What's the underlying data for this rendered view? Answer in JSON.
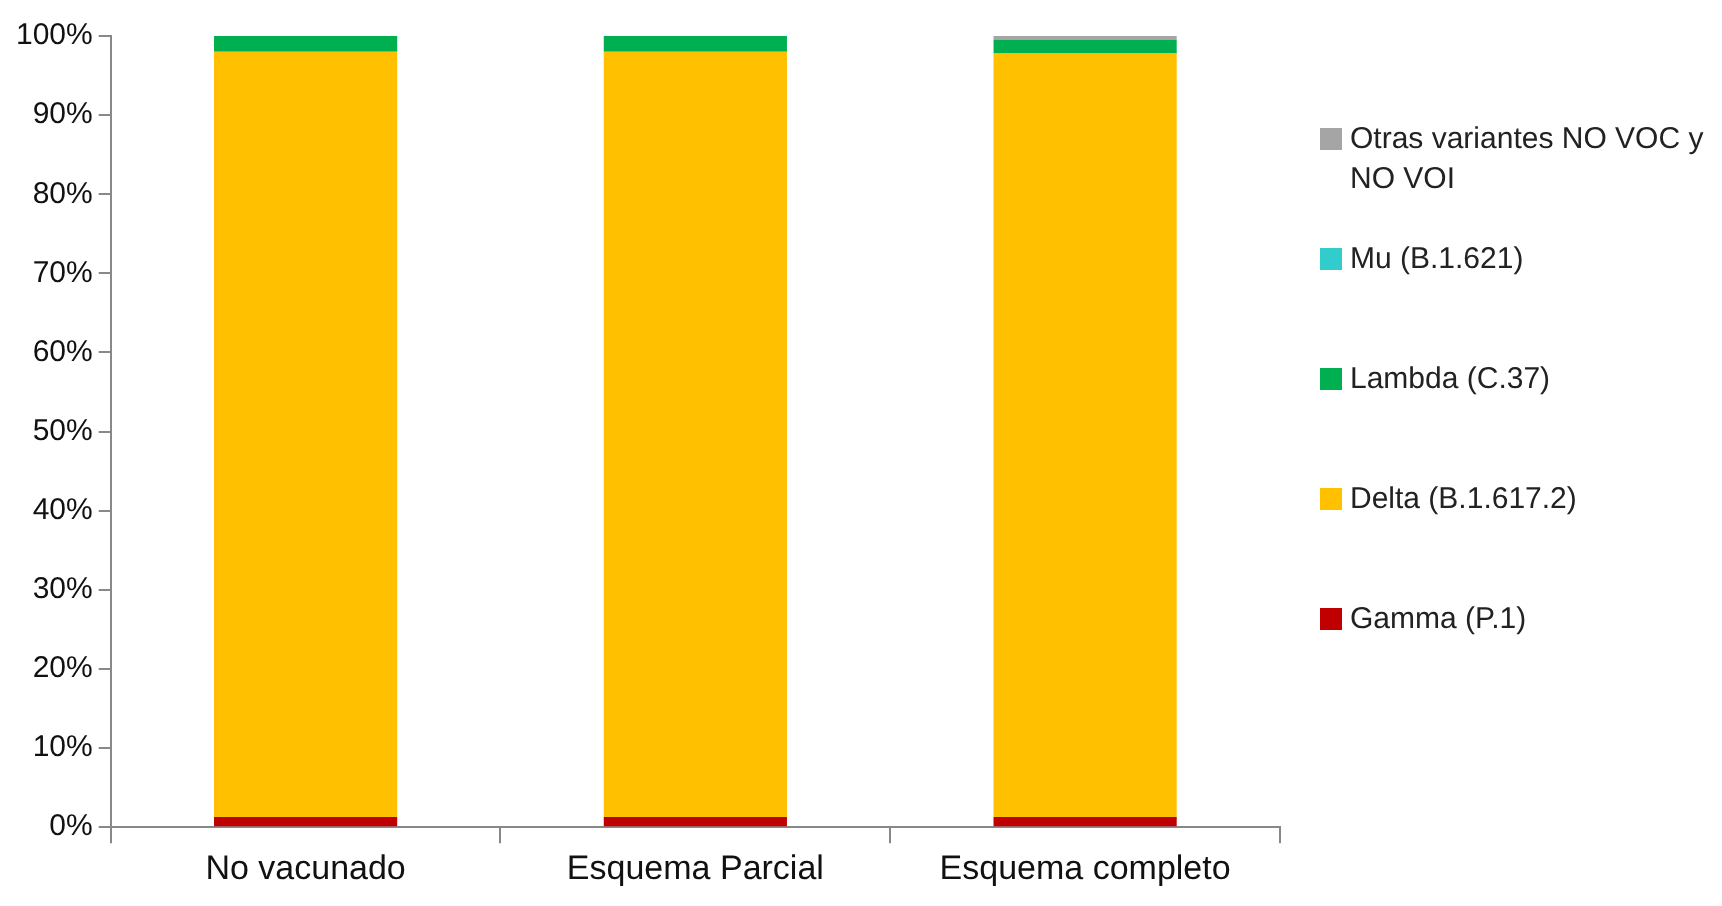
{
  "chart_data": {
    "type": "bar",
    "stacked": true,
    "grid": false,
    "legend": "right",
    "categories": [
      "No vacunado",
      "Esquema Parcial",
      "Esquema completo"
    ],
    "ylim": [
      0,
      100
    ],
    "yticks": [
      {
        "value": 0,
        "label": "0%"
      },
      {
        "value": 10,
        "label": "10%"
      },
      {
        "value": 20,
        "label": "20%"
      },
      {
        "value": 30,
        "label": "30%"
      },
      {
        "value": 40,
        "label": "40%"
      },
      {
        "value": 50,
        "label": "50%"
      },
      {
        "value": 60,
        "label": "60%"
      },
      {
        "value": 70,
        "label": "70%"
      },
      {
        "value": 80,
        "label": "80%"
      },
      {
        "value": 90,
        "label": "90%"
      },
      {
        "value": 100,
        "label": "100%"
      }
    ],
    "series": [
      {
        "name": "Gamma (P.1)",
        "color": "#c00000",
        "values": [
          1.3,
          1.3,
          1.3
        ]
      },
      {
        "name": "Delta (B.1.617.2)",
        "color": "#ffc000",
        "values": [
          96.7,
          96.7,
          96.5
        ]
      },
      {
        "name": "Lambda (C.37)",
        "color": "#00b050",
        "values": [
          2,
          2,
          1.7
        ]
      },
      {
        "name": "Mu (B.1.621)",
        "color": "#33cccc",
        "values": [
          0,
          0,
          0
        ]
      },
      {
        "name": "Otras variantes NO VOC y NO VOI",
        "color": "#a5a5a5",
        "values": [
          0,
          0,
          0.5
        ]
      }
    ]
  }
}
